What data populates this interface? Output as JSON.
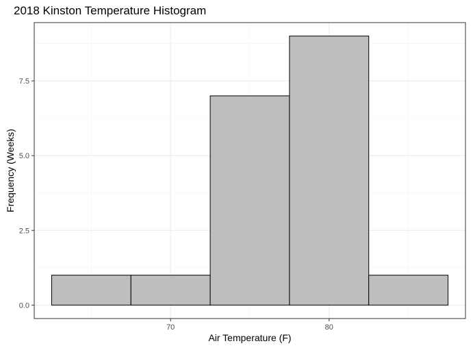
{
  "chart_data": {
    "type": "bar",
    "title": "2018 Kinston Temperature Histogram",
    "xlabel": "Air Temperature (F)",
    "ylabel": "Frequency (Weeks)",
    "bins": [
      {
        "x0": 62.5,
        "x1": 67.5,
        "count": 1
      },
      {
        "x0": 67.5,
        "x1": 72.5,
        "count": 1
      },
      {
        "x0": 72.5,
        "x1": 77.5,
        "count": 7
      },
      {
        "x0": 77.5,
        "x1": 82.5,
        "count": 9
      },
      {
        "x0": 82.5,
        "x1": 87.5,
        "count": 1
      }
    ],
    "xlim": [
      61.4,
      88.6
    ],
    "ylim": [
      -0.45,
      9.45
    ],
    "x_ticks": [
      70,
      80
    ],
    "x_tick_labels": [
      "70",
      "80"
    ],
    "y_ticks": [
      0,
      2.5,
      5,
      7.5
    ],
    "y_tick_labels": [
      "0.0",
      "2.5",
      "5.0",
      "7.5"
    ],
    "grid": true,
    "bar_fill": "#bebebe",
    "bar_stroke": "#000000",
    "panel_border": "#333333",
    "grid_major_color": "#ebebeb",
    "grid_minor_color": "#f5f5f5"
  }
}
